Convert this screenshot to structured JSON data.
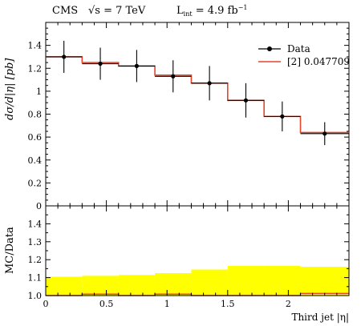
{
  "header": {
    "experiment": "CMS",
    "energy": "√s = 7 TeV",
    "lumi": "L",
    "lumi_sub": "int",
    "lumi_value": " = 4.9 fb",
    "lumi_sup": "−1"
  },
  "chart_data": [
    {
      "type": "line",
      "panel": "main",
      "ylabel": "dσ/d|η| [pb]",
      "xlim": [
        0,
        2.5
      ],
      "ylim": [
        0,
        1.6
      ],
      "yticks": [
        "0",
        "0.2",
        "0.4",
        "0.6",
        "0.8",
        "1",
        "1.2",
        "1.4"
      ],
      "legend": {
        "placement": "top-right",
        "entries": [
          "Data",
          "[2] 0.047709"
        ]
      },
      "bins": [
        {
          "lo": 0.0,
          "hi": 0.3,
          "data": 1.3,
          "err": 0.14,
          "mc": 1.3
        },
        {
          "lo": 0.3,
          "hi": 0.6,
          "data": 1.24,
          "err": 0.14,
          "mc": 1.25
        },
        {
          "lo": 0.6,
          "hi": 0.9,
          "data": 1.22,
          "err": 0.14,
          "mc": 1.22
        },
        {
          "lo": 0.9,
          "hi": 1.2,
          "data": 1.13,
          "err": 0.14,
          "mc": 1.14
        },
        {
          "lo": 1.2,
          "hi": 1.5,
          "data": 1.07,
          "err": 0.15,
          "mc": 1.07
        },
        {
          "lo": 1.5,
          "hi": 1.8,
          "data": 0.92,
          "err": 0.15,
          "mc": 0.92
        },
        {
          "lo": 1.8,
          "hi": 2.1,
          "data": 0.78,
          "err": 0.13,
          "mc": 0.78
        },
        {
          "lo": 2.1,
          "hi": 2.5,
          "data": 0.63,
          "err": 0.1,
          "mc": 0.64
        }
      ],
      "colors": {
        "data": "#000000",
        "mc": "#e8452a"
      }
    },
    {
      "type": "area",
      "panel": "ratio",
      "ylabel": "MC/Data",
      "xlabel": "Third jet |η|",
      "xlim": [
        0,
        2.5
      ],
      "ylim": [
        1.0,
        1.5
      ],
      "xticks": [
        "0",
        "0.5",
        "1",
        "1.5",
        "2"
      ],
      "yticks": [
        "1.0",
        "1.1",
        "1.2",
        "1.3",
        "1.4"
      ],
      "band": [
        {
          "lo": 0.0,
          "hi": 0.3,
          "up": 1.105,
          "down": 1.0
        },
        {
          "lo": 0.3,
          "hi": 0.6,
          "up": 1.11,
          "down": 1.0
        },
        {
          "lo": 0.6,
          "hi": 0.9,
          "up": 1.115,
          "down": 1.0
        },
        {
          "lo": 0.9,
          "hi": 1.2,
          "up": 1.125,
          "down": 1.0
        },
        {
          "lo": 1.2,
          "hi": 1.5,
          "up": 1.145,
          "down": 1.0
        },
        {
          "lo": 1.5,
          "hi": 1.8,
          "up": 1.165,
          "down": 1.0
        },
        {
          "lo": 1.8,
          "hi": 2.1,
          "up": 1.165,
          "down": 1.0
        },
        {
          "lo": 2.1,
          "hi": 2.5,
          "up": 1.16,
          "down": 1.0
        }
      ],
      "ratio": [
        1.0,
        1.008,
        1.0,
        1.008,
        1.0,
        1.0,
        1.0,
        1.012
      ],
      "colors": {
        "band": "#ffff00",
        "ratio": "#e8452a"
      }
    }
  ]
}
